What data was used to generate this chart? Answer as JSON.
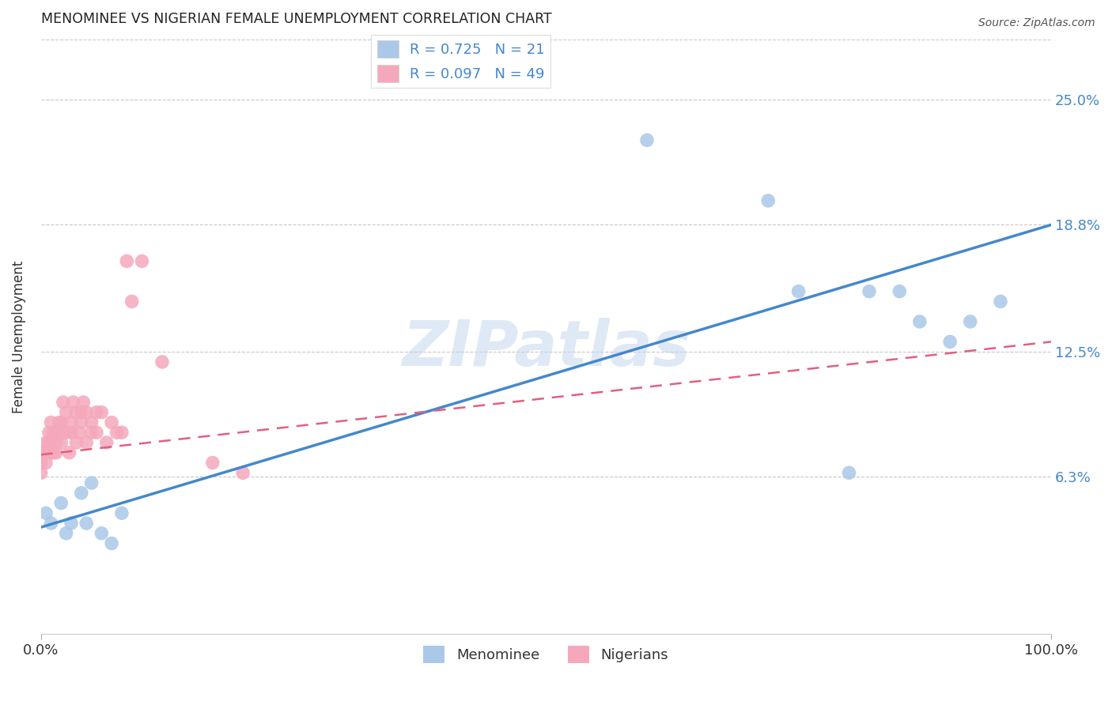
{
  "title": "MENOMINEE VS NIGERIAN FEMALE UNEMPLOYMENT CORRELATION CHART",
  "source": "Source: ZipAtlas.com",
  "ylabel": "Female Unemployment",
  "watermark": "ZIPatlas",
  "xlim": [
    0,
    1.0
  ],
  "ylim": [
    -0.015,
    0.28
  ],
  "xticks": [
    0.0,
    1.0
  ],
  "xticklabels": [
    "0.0%",
    "100.0%"
  ],
  "ytick_positions": [
    0.063,
    0.125,
    0.188,
    0.25
  ],
  "ytick_labels": [
    "6.3%",
    "12.5%",
    "18.8%",
    "25.0%"
  ],
  "grid_color": "#c8c8c8",
  "background_color": "#ffffff",
  "menominee_color": "#aac8e8",
  "nigerian_color": "#f5a8bc",
  "menominee_line_color": "#4488cc",
  "nigerian_line_color": "#e06080",
  "R_menominee": 0.725,
  "N_menominee": 21,
  "R_nigerian": 0.097,
  "N_nigerian": 49,
  "menominee_x": [
    0.005,
    0.01,
    0.02,
    0.025,
    0.03,
    0.04,
    0.045,
    0.05,
    0.06,
    0.07,
    0.08,
    0.6,
    0.72,
    0.75,
    0.8,
    0.82,
    0.85,
    0.87,
    0.9,
    0.92,
    0.95
  ],
  "menominee_y": [
    0.045,
    0.04,
    0.05,
    0.035,
    0.04,
    0.055,
    0.04,
    0.06,
    0.035,
    0.03,
    0.045,
    0.23,
    0.2,
    0.155,
    0.065,
    0.155,
    0.155,
    0.14,
    0.13,
    0.14,
    0.15
  ],
  "nigerian_x": [
    0.0,
    0.0,
    0.0,
    0.005,
    0.005,
    0.005,
    0.008,
    0.008,
    0.01,
    0.01,
    0.012,
    0.012,
    0.015,
    0.015,
    0.015,
    0.018,
    0.02,
    0.02,
    0.022,
    0.022,
    0.025,
    0.025,
    0.028,
    0.03,
    0.03,
    0.032,
    0.035,
    0.035,
    0.038,
    0.04,
    0.04,
    0.042,
    0.045,
    0.045,
    0.05,
    0.05,
    0.055,
    0.055,
    0.06,
    0.065,
    0.07,
    0.075,
    0.08,
    0.085,
    0.09,
    0.1,
    0.12,
    0.17,
    0.2
  ],
  "nigerian_y": [
    0.075,
    0.07,
    0.065,
    0.08,
    0.075,
    0.07,
    0.085,
    0.08,
    0.09,
    0.075,
    0.085,
    0.075,
    0.085,
    0.08,
    0.075,
    0.09,
    0.09,
    0.08,
    0.1,
    0.085,
    0.095,
    0.085,
    0.075,
    0.09,
    0.085,
    0.1,
    0.095,
    0.08,
    0.085,
    0.095,
    0.09,
    0.1,
    0.095,
    0.08,
    0.09,
    0.085,
    0.085,
    0.095,
    0.095,
    0.08,
    0.09,
    0.085,
    0.085,
    0.17,
    0.15,
    0.17,
    0.12,
    0.07,
    0.065
  ],
  "menominee_trendline": [
    0.038,
    0.188
  ],
  "nigerian_trendline": [
    0.074,
    0.13
  ],
  "trendline_x": [
    0.0,
    1.0
  ]
}
